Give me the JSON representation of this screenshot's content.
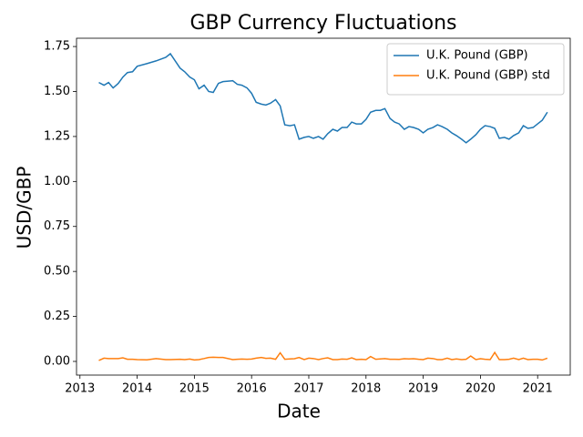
{
  "chart_data": {
    "type": "line",
    "title": "GBP Currency Fluctuations",
    "x_label": "Date",
    "y_label": "USD/GBP",
    "x": [
      2013.33,
      2013.42,
      2013.5,
      2013.58,
      2013.67,
      2013.75,
      2013.83,
      2013.92,
      2014.0,
      2014.17,
      2014.33,
      2014.5,
      2014.58,
      2014.75,
      2014.83,
      2014.92,
      2015.0,
      2015.08,
      2015.17,
      2015.25,
      2015.33,
      2015.42,
      2015.5,
      2015.67,
      2015.75,
      2015.83,
      2015.92,
      2016.0,
      2016.08,
      2016.17,
      2016.25,
      2016.33,
      2016.42,
      2016.5,
      2016.58,
      2016.67,
      2016.75,
      2016.83,
      2016.92,
      2017.0,
      2017.08,
      2017.17,
      2017.25,
      2017.33,
      2017.42,
      2017.5,
      2017.58,
      2017.67,
      2017.75,
      2017.83,
      2017.92,
      2018.0,
      2018.08,
      2018.17,
      2018.25,
      2018.33,
      2018.42,
      2018.5,
      2018.58,
      2018.67,
      2018.75,
      2018.83,
      2018.92,
      2019.0,
      2019.08,
      2019.17,
      2019.25,
      2019.33,
      2019.42,
      2019.5,
      2019.58,
      2019.67,
      2019.75,
      2019.83,
      2019.92,
      2020.0,
      2020.08,
      2020.17,
      2020.25,
      2020.33,
      2020.42,
      2020.5,
      2020.58,
      2020.67,
      2020.75,
      2020.83,
      2020.92,
      2021.0,
      2021.08,
      2021.17
    ],
    "series": [
      {
        "name": "U.K. Pound (GBP)",
        "color": "#1f77b4",
        "values": [
          1.55,
          1.535,
          1.55,
          1.52,
          1.545,
          1.58,
          1.605,
          1.61,
          1.64,
          1.655,
          1.67,
          1.69,
          1.71,
          1.63,
          1.61,
          1.58,
          1.565,
          1.515,
          1.535,
          1.5,
          1.495,
          1.545,
          1.555,
          1.56,
          1.54,
          1.535,
          1.52,
          1.49,
          1.44,
          1.43,
          1.425,
          1.435,
          1.455,
          1.42,
          1.315,
          1.31,
          1.315,
          1.235,
          1.245,
          1.25,
          1.24,
          1.25,
          1.235,
          1.265,
          1.29,
          1.28,
          1.3,
          1.3,
          1.33,
          1.32,
          1.32,
          1.345,
          1.385,
          1.395,
          1.395,
          1.405,
          1.35,
          1.33,
          1.32,
          1.29,
          1.305,
          1.3,
          1.29,
          1.27,
          1.29,
          1.3,
          1.315,
          1.305,
          1.29,
          1.27,
          1.255,
          1.235,
          1.215,
          1.235,
          1.26,
          1.29,
          1.31,
          1.305,
          1.295,
          1.24,
          1.245,
          1.235,
          1.255,
          1.27,
          1.31,
          1.295,
          1.3,
          1.32,
          1.34,
          1.385
        ]
      },
      {
        "name": "U.K. Pound (GBP) std",
        "color": "#ff7f0e",
        "values": [
          0.005,
          0.018,
          0.016,
          0.016,
          0.016,
          0.02,
          0.012,
          0.012,
          0.01,
          0.009,
          0.016,
          0.01,
          0.01,
          0.012,
          0.01,
          0.013,
          0.008,
          0.01,
          0.016,
          0.022,
          0.023,
          0.022,
          0.022,
          0.01,
          0.012,
          0.013,
          0.012,
          0.013,
          0.018,
          0.022,
          0.017,
          0.018,
          0.012,
          0.048,
          0.012,
          0.014,
          0.015,
          0.022,
          0.01,
          0.018,
          0.016,
          0.01,
          0.016,
          0.02,
          0.01,
          0.01,
          0.013,
          0.012,
          0.02,
          0.01,
          0.012,
          0.01,
          0.027,
          0.012,
          0.014,
          0.016,
          0.012,
          0.012,
          0.011,
          0.015,
          0.014,
          0.015,
          0.012,
          0.01,
          0.018,
          0.016,
          0.01,
          0.01,
          0.018,
          0.01,
          0.014,
          0.01,
          0.012,
          0.03,
          0.01,
          0.015,
          0.012,
          0.01,
          0.05,
          0.01,
          0.01,
          0.012,
          0.018,
          0.01,
          0.018,
          0.01,
          0.012,
          0.012,
          0.008,
          0.018
        ]
      }
    ],
    "xlim": [
      2012.94,
      2021.57
    ],
    "xticks": [
      2013,
      2014,
      2015,
      2016,
      2017,
      2018,
      2019,
      2020,
      2021
    ],
    "ylim": [
      -0.076,
      1.796
    ],
    "yticks": [
      {
        "value": 0,
        "label": "0.00"
      },
      {
        "value": 0.25,
        "label": "0.25"
      },
      {
        "value": 0.5,
        "label": "0.50"
      },
      {
        "value": 0.75,
        "label": "0.75"
      },
      {
        "value": 1,
        "label": "1.00"
      },
      {
        "value": 1.25,
        "label": "1.25"
      },
      {
        "value": 1.5,
        "label": "1.50"
      },
      {
        "value": 1.75,
        "label": "1.75"
      }
    ],
    "legend": "upper right",
    "grid": false
  }
}
